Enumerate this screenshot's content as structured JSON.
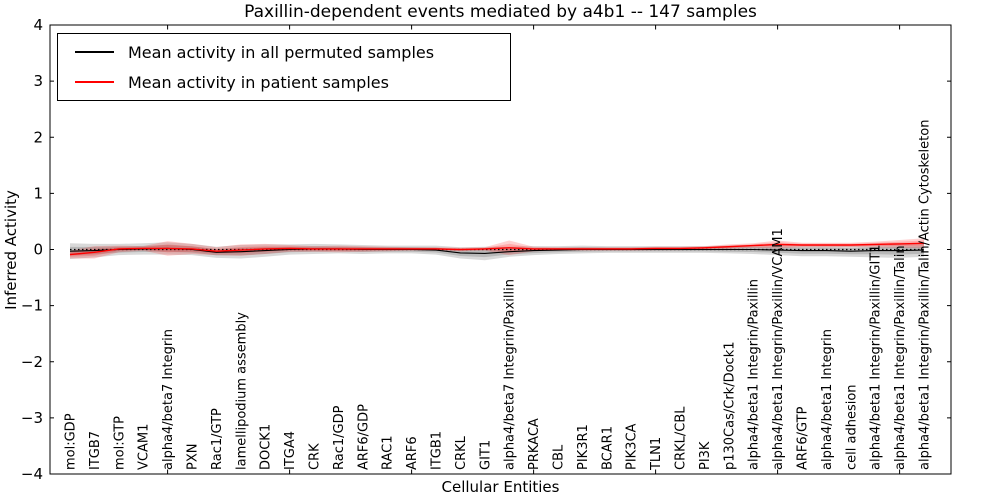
{
  "title": "Paxillin-dependent events mediated by a4b1 -- 147 samples",
  "legend": {
    "items": [
      {
        "label": "Mean activity in all permuted samples",
        "color": "#000000"
      },
      {
        "label": "Mean activity in patient samples",
        "color": "#ff0000"
      }
    ]
  },
  "chart_data": {
    "type": "line",
    "title": "Paxillin-dependent events mediated by a4b1 -- 147 samples",
    "xlabel": "Cellular Entities",
    "ylabel": "Inferred Activity",
    "ylim": [
      -4,
      4
    ],
    "ytick_step": 1,
    "xtick_positions": [
      4,
      9,
      14,
      19,
      24,
      29,
      34
    ],
    "grid": false,
    "legend_position": "upper left",
    "zero_line": {
      "style": "dotted",
      "color": "#000000",
      "y": 0
    },
    "categories": [
      "mol:GDP",
      "ITGB7",
      "mol:GTP",
      "VCAM1",
      "alpha4/beta7 Integrin",
      "PXN",
      "Rac1/GTP",
      "lamellipodium assembly",
      "DOCK1",
      "ITGA4",
      "CRK",
      "Rac1/GDP",
      "ARF6/GDP",
      "RAC1",
      "ARF6",
      "ITGB1",
      "CRKL",
      "GIT1",
      "alpha4/beta7 Integrin/Paxillin",
      "PRKACA",
      "CBL",
      "PIK3R1",
      "BCAR1",
      "PIK3CA",
      "TLN1",
      "CRKL/CBL",
      "PI3K",
      "p130Cas/Crk/Dock1",
      "alpha4/beta1 Integrin/Paxillin",
      "alpha4/beta1 Integrin/Paxillin/VCAM1",
      "ARF6/GTP",
      "alpha4/beta1 Integrin",
      "cell adhesion",
      "alpha4/beta1 Integrin/Paxillin/GIT1",
      "alpha4/beta1 Integrin/Paxillin/Talin",
      "alpha4/beta1 Integrin/Paxillin/Talin/Actin Cytoskeleton"
    ],
    "series": [
      {
        "name": "Mean activity in all permuted samples",
        "color": "#000000",
        "band_color": "rgba(0,0,0,0.15)",
        "values": [
          -0.03,
          -0.02,
          0.0,
          0.01,
          0.02,
          0.0,
          -0.05,
          -0.04,
          -0.02,
          0.0,
          0.01,
          0.01,
          0.0,
          0.0,
          0.0,
          -0.01,
          -0.06,
          -0.07,
          -0.04,
          -0.02,
          -0.01,
          0.0,
          0.0,
          0.0,
          0.0,
          0.0,
          0.0,
          0.0,
          0.0,
          -0.01,
          -0.02,
          -0.02,
          -0.03,
          -0.02,
          -0.02,
          -0.01
        ],
        "band": [
          0.14,
          0.12,
          0.1,
          0.1,
          0.11,
          0.1,
          0.1,
          0.12,
          0.11,
          0.09,
          0.09,
          0.08,
          0.08,
          0.07,
          0.07,
          0.08,
          0.1,
          0.12,
          0.09,
          0.08,
          0.07,
          0.07,
          0.06,
          0.06,
          0.06,
          0.06,
          0.06,
          0.07,
          0.08,
          0.09,
          0.1,
          0.1,
          0.1,
          0.12,
          0.13,
          0.12
        ]
      },
      {
        "name": "Mean activity in patient samples",
        "color": "#ff0000",
        "band_color": "rgba(255,0,0,0.18)",
        "values": [
          -0.09,
          -0.05,
          0.01,
          0.02,
          0.02,
          0.01,
          -0.03,
          -0.01,
          0.01,
          0.02,
          0.01,
          0.01,
          0.01,
          0.01,
          0.01,
          0.01,
          0.0,
          0.01,
          0.03,
          0.01,
          0.01,
          0.01,
          0.01,
          0.01,
          0.02,
          0.02,
          0.03,
          0.05,
          0.07,
          0.09,
          0.08,
          0.08,
          0.08,
          0.09,
          0.1,
          0.11
        ],
        "band": [
          0.07,
          0.11,
          0.06,
          0.04,
          0.13,
          0.09,
          0.07,
          0.1,
          0.09,
          0.06,
          0.05,
          0.06,
          0.05,
          0.04,
          0.03,
          0.03,
          0.03,
          0.03,
          0.13,
          0.04,
          0.03,
          0.03,
          0.03,
          0.03,
          0.03,
          0.03,
          0.03,
          0.04,
          0.04,
          0.07,
          0.04,
          0.04,
          0.04,
          0.05,
          0.07,
          0.09
        ]
      }
    ]
  }
}
